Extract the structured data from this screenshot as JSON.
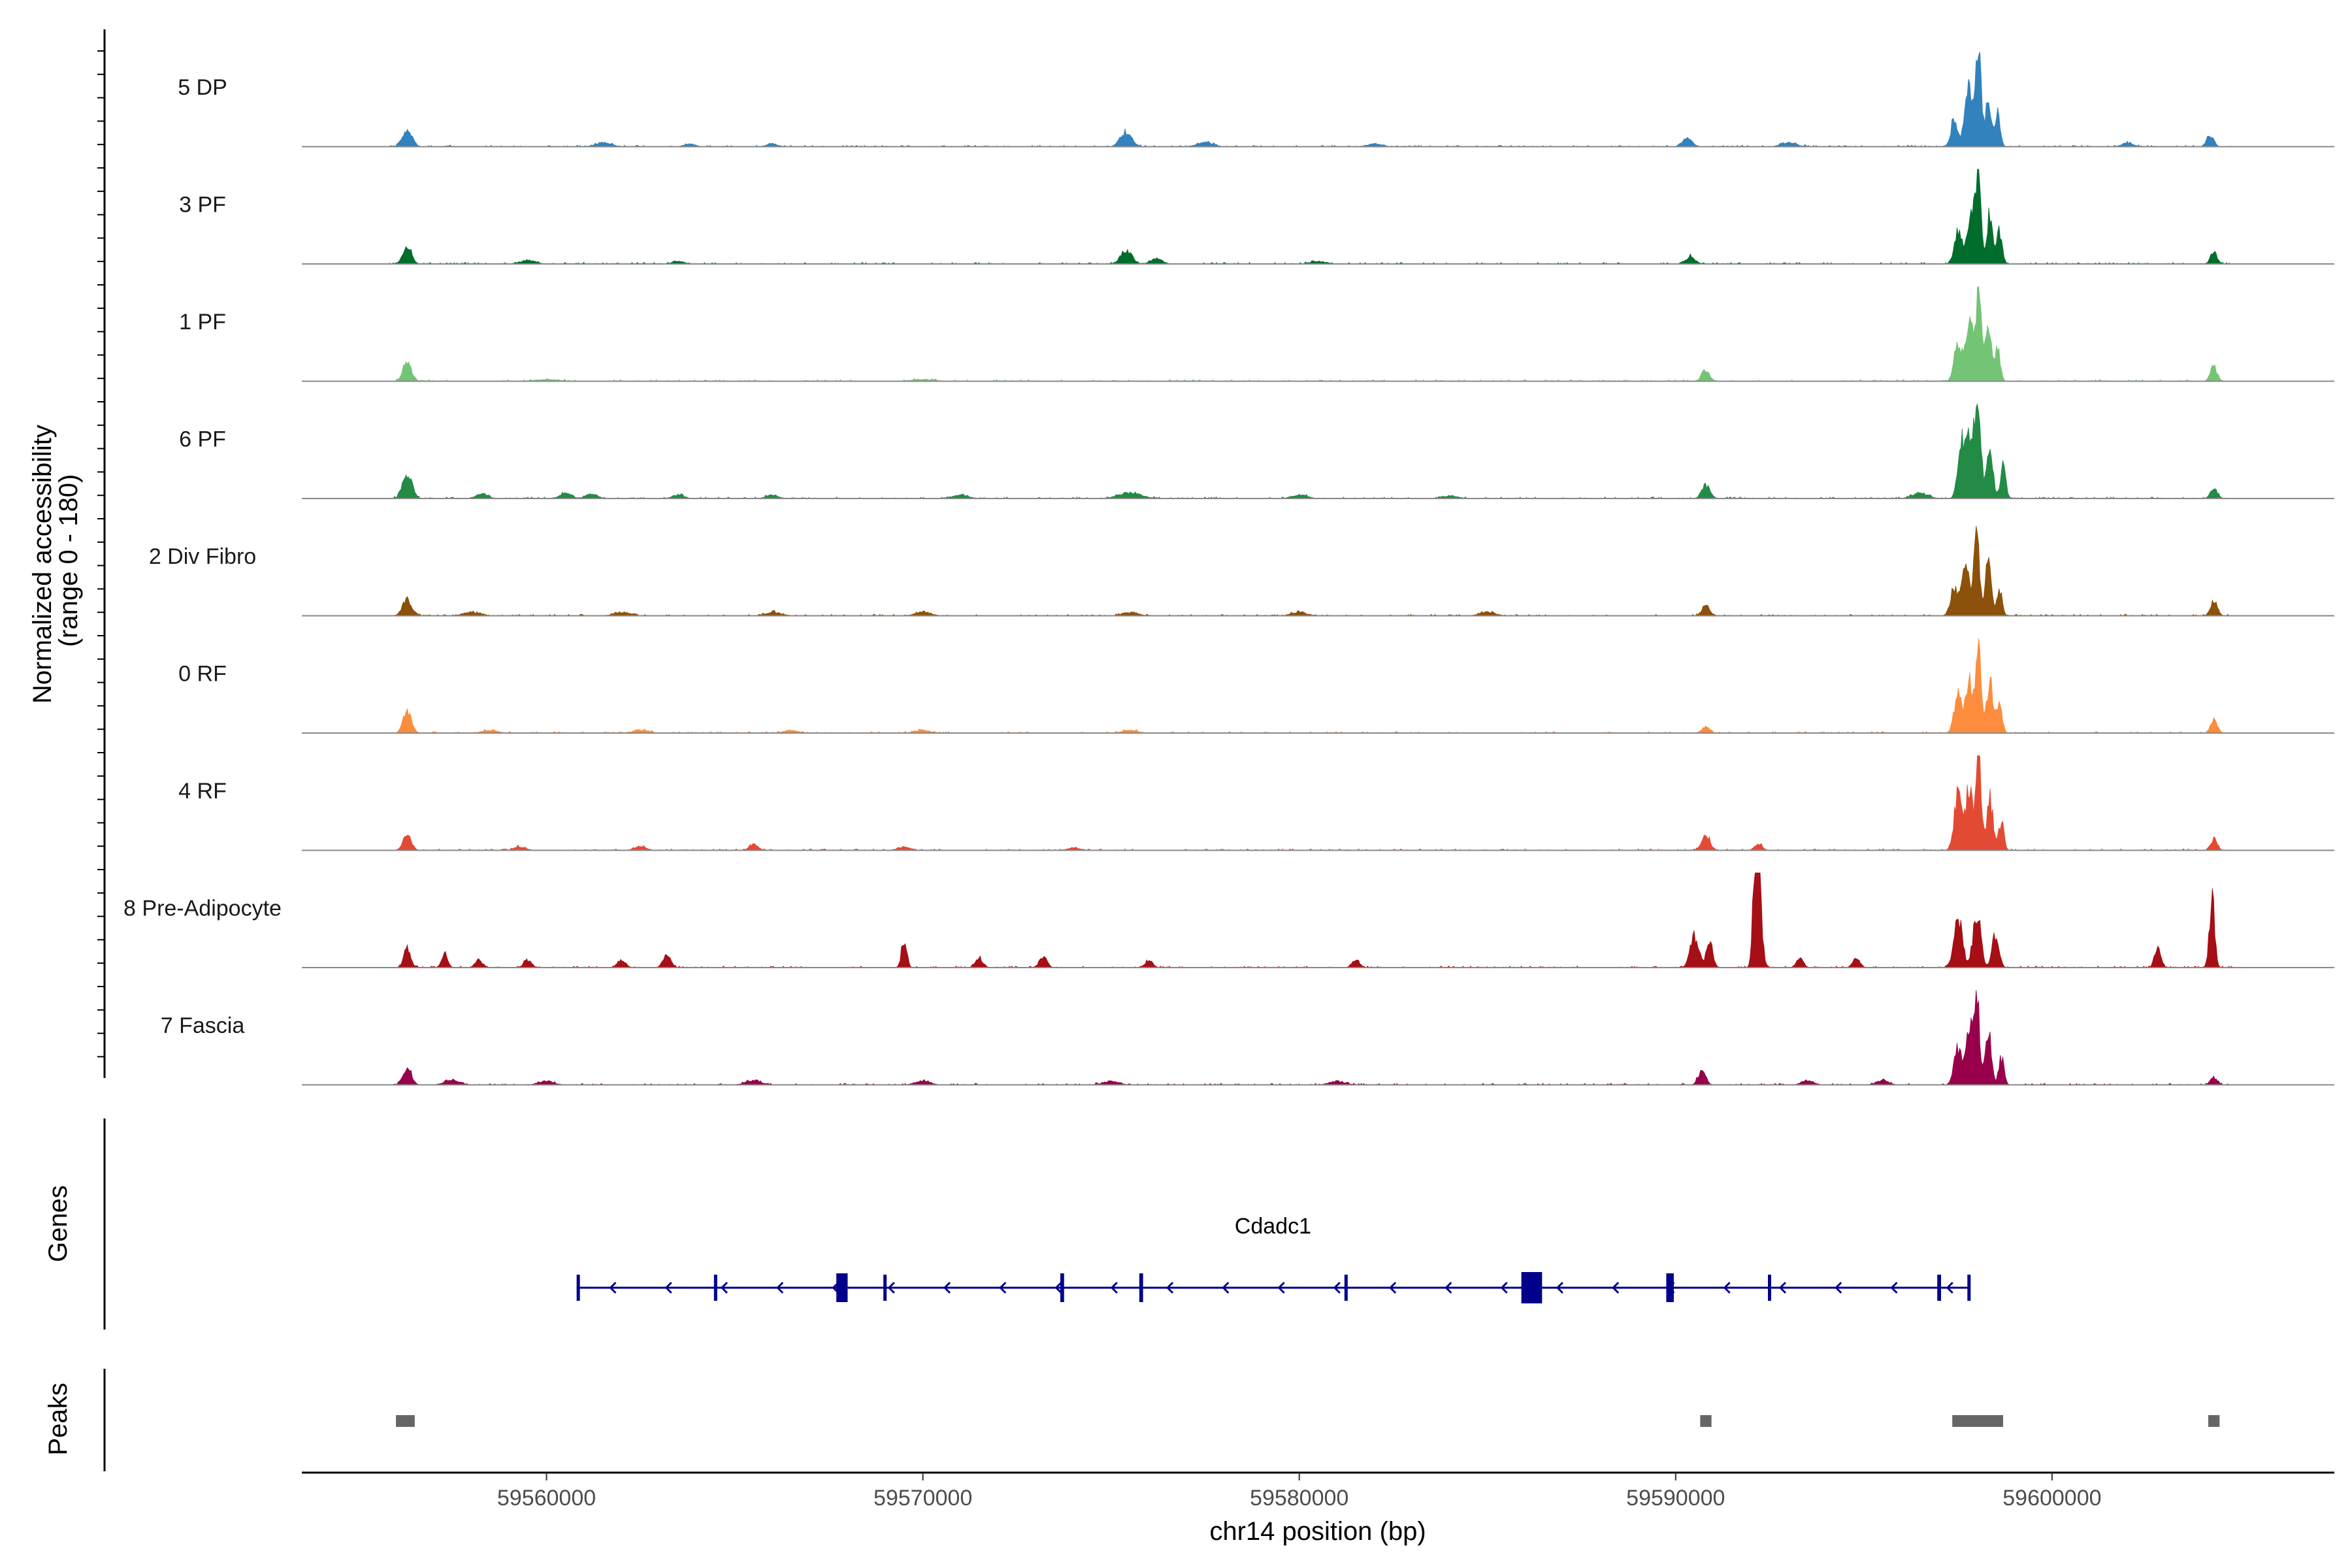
{
  "chart_data": {
    "type": "area",
    "title": "",
    "ylabel_line1": "Normalized accessibility",
    "ylabel_line2": "(range 0 - 180)",
    "ylim": [
      0,
      180
    ],
    "xlabel": "chr14 position (bp)",
    "xlim": [
      59553500,
      59607500
    ],
    "xticks": [
      {
        "value": 59560000,
        "label": "59560000"
      },
      {
        "value": 59570000,
        "label": "59570000"
      },
      {
        "value": 59580000,
        "label": "59580000"
      },
      {
        "value": 59590000,
        "label": "59590000"
      },
      {
        "value": 59600000,
        "label": "59600000"
      }
    ],
    "series": [
      {
        "name": "5 DP",
        "color": "#3182bd",
        "peaks": [
          [
            59556300,
            18,
            130
          ],
          [
            59561500,
            4,
            200
          ],
          [
            59563800,
            3,
            150
          ],
          [
            59566000,
            3,
            150
          ],
          [
            59575400,
            16,
            150
          ],
          [
            59577500,
            5,
            200
          ],
          [
            59582000,
            3,
            200
          ],
          [
            59590300,
            10,
            120
          ],
          [
            59593000,
            4,
            200
          ],
          [
            59597400,
            30,
            90
          ],
          [
            59597800,
            62,
            110
          ],
          [
            59598050,
            100,
            70
          ],
          [
            59598300,
            45,
            80
          ],
          [
            59598550,
            35,
            70
          ],
          [
            59604200,
            13,
            90
          ],
          [
            59602000,
            4,
            150
          ]
        ]
      },
      {
        "name": "3 PF",
        "color": "#006d2c",
        "peaks": [
          [
            59556300,
            20,
            110
          ],
          [
            59559500,
            4,
            200
          ],
          [
            59563500,
            3,
            150
          ],
          [
            59575400,
            14,
            150
          ],
          [
            59576200,
            6,
            150
          ],
          [
            59580500,
            3,
            200
          ],
          [
            59590400,
            8,
            120
          ],
          [
            59597500,
            35,
            100
          ],
          [
            59597850,
            62,
            100
          ],
          [
            59598050,
            100,
            70
          ],
          [
            59598350,
            55,
            80
          ],
          [
            59598600,
            35,
            70
          ],
          [
            59604300,
            12,
            90
          ]
        ]
      },
      {
        "name": "1 PF",
        "color": "#74c476",
        "peaks": [
          [
            59556300,
            22,
            110
          ],
          [
            59560000,
            2,
            300
          ],
          [
            59570000,
            2,
            300
          ],
          [
            59590800,
            12,
            100
          ],
          [
            59597500,
            40,
            100
          ],
          [
            59597800,
            75,
            90
          ],
          [
            59598050,
            100,
            70
          ],
          [
            59598300,
            58,
            80
          ],
          [
            59598550,
            35,
            70
          ],
          [
            59604300,
            16,
            90
          ]
        ]
      },
      {
        "name": "6 PF",
        "color": "#238b45",
        "peaks": [
          [
            59556300,
            28,
            120
          ],
          [
            59558300,
            5,
            150
          ],
          [
            59560500,
            6,
            150
          ],
          [
            59561200,
            5,
            150
          ],
          [
            59563500,
            4,
            150
          ],
          [
            59566000,
            4,
            150
          ],
          [
            59571000,
            4,
            200
          ],
          [
            59575500,
            6,
            300
          ],
          [
            59580000,
            4,
            200
          ],
          [
            59584000,
            3,
            200
          ],
          [
            59590800,
            14,
            110
          ],
          [
            59596500,
            6,
            200
          ],
          [
            59597600,
            60,
            100
          ],
          [
            59597850,
            70,
            100
          ],
          [
            59598050,
            100,
            70
          ],
          [
            59598350,
            55,
            80
          ],
          [
            59598700,
            35,
            70
          ],
          [
            59604300,
            12,
            90
          ]
        ]
      },
      {
        "name": "2 Div Fibro",
        "color": "#8c510a",
        "peaks": [
          [
            59556300,
            18,
            120
          ],
          [
            59558000,
            4,
            200
          ],
          [
            59562000,
            4,
            200
          ],
          [
            59566000,
            4,
            200
          ],
          [
            59570000,
            4,
            200
          ],
          [
            59575500,
            4,
            200
          ],
          [
            59580000,
            4,
            200
          ],
          [
            59585000,
            4,
            200
          ],
          [
            59590800,
            10,
            100
          ],
          [
            59597400,
            30,
            100
          ],
          [
            59597700,
            55,
            100
          ],
          [
            59598000,
            100,
            70
          ],
          [
            59598300,
            55,
            80
          ],
          [
            59598600,
            30,
            70
          ],
          [
            59604300,
            16,
            90
          ]
        ]
      },
      {
        "name": "0 RF",
        "color": "#fd8d3c",
        "peaks": [
          [
            59556300,
            22,
            110
          ],
          [
            59558500,
            3,
            200
          ],
          [
            59562500,
            3,
            200
          ],
          [
            59566500,
            3,
            200
          ],
          [
            59570000,
            3,
            200
          ],
          [
            59575500,
            3,
            200
          ],
          [
            59590800,
            7,
            100
          ],
          [
            59597500,
            40,
            100
          ],
          [
            59597800,
            62,
            90
          ],
          [
            59598050,
            100,
            70
          ],
          [
            59598350,
            58,
            80
          ],
          [
            59598600,
            35,
            70
          ],
          [
            59604300,
            14,
            90
          ]
        ]
      },
      {
        "name": "4 RF",
        "color": "#e34a33",
        "peaks": [
          [
            59556300,
            16,
            110
          ],
          [
            59559300,
            4,
            150
          ],
          [
            59562500,
            4,
            150
          ],
          [
            59565500,
            6,
            120
          ],
          [
            59569500,
            4,
            150
          ],
          [
            59574000,
            3,
            150
          ],
          [
            59590800,
            16,
            110
          ],
          [
            59592200,
            7,
            100
          ],
          [
            59597500,
            60,
            100
          ],
          [
            59597800,
            70,
            90
          ],
          [
            59598050,
            100,
            70
          ],
          [
            59598350,
            55,
            80
          ],
          [
            59598650,
            30,
            70
          ],
          [
            59604300,
            12,
            90
          ]
        ]
      },
      {
        "name": "8 Pre-Adipocyte",
        "color": "#a50f15",
        "peaks": [
          [
            59556300,
            20,
            90
          ],
          [
            59557300,
            15,
            80
          ],
          [
            59558200,
            8,
            100
          ],
          [
            59559500,
            8,
            100
          ],
          [
            59562000,
            8,
            100
          ],
          [
            59563200,
            15,
            100
          ],
          [
            59569500,
            30,
            70
          ],
          [
            59571500,
            10,
            100
          ],
          [
            59573200,
            12,
            100
          ],
          [
            59576000,
            8,
            100
          ],
          [
            59581500,
            8,
            100
          ],
          [
            59590500,
            35,
            110
          ],
          [
            59590900,
            25,
            90
          ],
          [
            59592200,
            100,
            80
          ],
          [
            59592100,
            75,
            60
          ],
          [
            59593300,
            10,
            90
          ],
          [
            59594800,
            12,
            90
          ],
          [
            59597500,
            55,
            110
          ],
          [
            59598000,
            60,
            100
          ],
          [
            59598500,
            35,
            90
          ],
          [
            59602800,
            22,
            80
          ],
          [
            59604250,
            72,
            70
          ]
        ]
      },
      {
        "name": "7 Fascia",
        "color": "#99004c",
        "peaks": [
          [
            59556300,
            20,
            110
          ],
          [
            59557500,
            5,
            200
          ],
          [
            59560000,
            4,
            200
          ],
          [
            59565500,
            5,
            200
          ],
          [
            59570000,
            4,
            200
          ],
          [
            59575000,
            4,
            200
          ],
          [
            59581000,
            4,
            200
          ],
          [
            59590700,
            15,
            100
          ],
          [
            59593500,
            5,
            150
          ],
          [
            59595500,
            5,
            150
          ],
          [
            59597500,
            40,
            100
          ],
          [
            59597800,
            62,
            90
          ],
          [
            59598000,
            100,
            70
          ],
          [
            59598300,
            58,
            80
          ],
          [
            59598650,
            30,
            70
          ],
          [
            59604300,
            8,
            90
          ]
        ]
      }
    ],
    "genes_track": {
      "label": "Genes",
      "gene_name": "Cdadc1",
      "start": 59560800,
      "end": 59597800,
      "strand": "-",
      "color": "#00008b",
      "exons": [
        {
          "start": 59560800,
          "end": 59560850,
          "size": "thin"
        },
        {
          "start": 59564450,
          "end": 59564520,
          "size": "thin"
        },
        {
          "start": 59567700,
          "end": 59568000,
          "size": "medium"
        },
        {
          "start": 59568950,
          "end": 59569000,
          "size": "thin"
        },
        {
          "start": 59573650,
          "end": 59573750,
          "size": "medium"
        },
        {
          "start": 59575750,
          "end": 59575850,
          "size": "medium"
        },
        {
          "start": 59581200,
          "end": 59581250,
          "size": "thin"
        },
        {
          "start": 59585900,
          "end": 59586450,
          "size": "large"
        },
        {
          "start": 59589750,
          "end": 59589950,
          "size": "medium"
        },
        {
          "start": 59592450,
          "end": 59592520,
          "size": "thin"
        },
        {
          "start": 59596950,
          "end": 59597050,
          "size": "thin"
        },
        {
          "start": 59597750,
          "end": 59597800,
          "size": "thin"
        }
      ]
    },
    "peaks_track": {
      "label": "Peaks",
      "color": "#666666",
      "regions": [
        [
          59556000,
          59556500
        ],
        [
          59590650,
          59590950
        ],
        [
          59597350,
          59598700
        ],
        [
          59604150,
          59604450
        ]
      ]
    }
  }
}
